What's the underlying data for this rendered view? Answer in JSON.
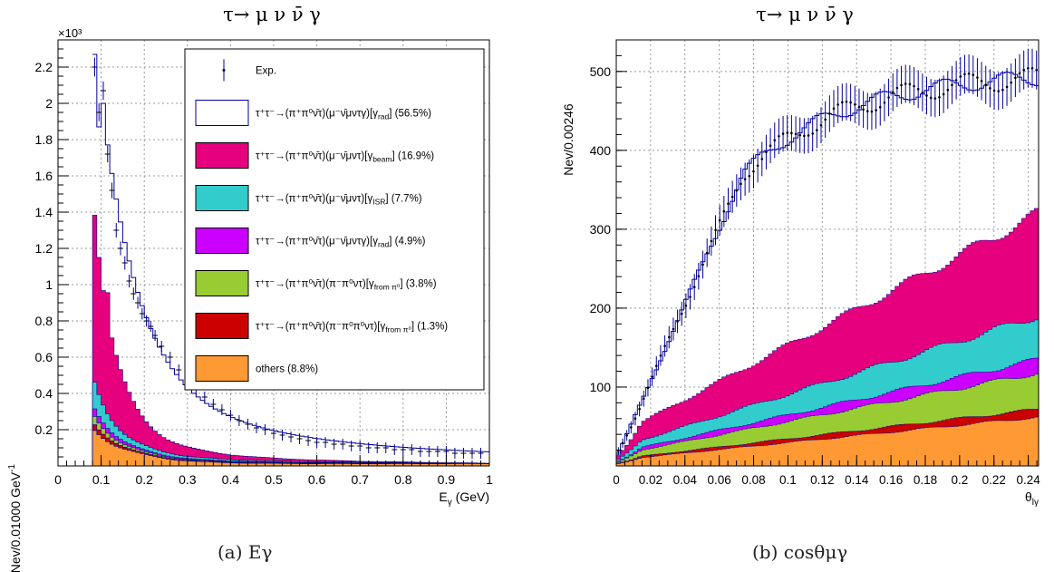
{
  "chart_data": [
    {
      "type": "histogram-stacked",
      "title": "τ→ μ ν ν̄ γ",
      "xlabel": "E",
      "xlabel_sub": "γ",
      "xlabel_unit": " (GeV)",
      "ylabel": "Nev/0.01000 GeV",
      "ylabel_sup": "-1",
      "y_exponent": "×10³",
      "xlim": [
        0,
        1
      ],
      "ylim": [
        0,
        2.35
      ],
      "x_ticks": [
        0,
        0.1,
        0.2,
        0.3,
        0.4,
        0.5,
        0.6,
        0.7,
        0.8,
        0.9,
        1
      ],
      "x_tick_labels": [
        "0",
        "0.1",
        "0.2",
        "0.3",
        "0.4",
        "0.5",
        "0.6",
        "0.7",
        "0.8",
        "0.9",
        "1"
      ],
      "y_ticks": [
        0.2,
        0.4,
        0.6,
        0.8,
        1,
        1.2,
        1.4,
        1.6,
        1.8,
        2,
        2.2
      ],
      "y_tick_labels": [
        "0.2",
        "0.4",
        "0.6",
        "0.8",
        "1",
        "1.2",
        "1.4",
        "1.6",
        "1.8",
        "2",
        "2.2"
      ],
      "grid": true,
      "legend_position": "top-right",
      "caption": "(a) Eγ",
      "data_points_x": [
        0.085,
        0.095,
        0.105,
        0.115,
        0.125,
        0.135,
        0.145,
        0.155,
        0.165,
        0.175,
        0.185,
        0.195,
        0.205,
        0.215,
        0.225,
        0.24,
        0.26,
        0.28,
        0.3,
        0.32,
        0.34,
        0.36,
        0.38,
        0.4,
        0.42,
        0.44,
        0.46,
        0.48,
        0.5,
        0.52,
        0.54,
        0.56,
        0.58,
        0.6,
        0.62,
        0.64,
        0.66,
        0.68,
        0.7,
        0.72,
        0.74,
        0.76,
        0.78,
        0.8,
        0.82,
        0.84,
        0.86,
        0.88,
        0.9,
        0.92,
        0.94,
        0.96,
        0.98
      ],
      "data_points_y": [
        2.2,
        1.95,
        2.07,
        1.72,
        1.52,
        1.3,
        1.2,
        1.12,
        1.02,
        0.95,
        0.9,
        0.84,
        0.8,
        0.77,
        0.72,
        0.66,
        0.6,
        0.53,
        0.47,
        0.42,
        0.38,
        0.34,
        0.31,
        0.28,
        0.25,
        0.23,
        0.21,
        0.2,
        0.18,
        0.17,
        0.16,
        0.15,
        0.14,
        0.13,
        0.13,
        0.12,
        0.12,
        0.11,
        0.11,
        0.1,
        0.1,
        0.1,
        0.09,
        0.09,
        0.09,
        0.08,
        0.08,
        0.08,
        0.08,
        0.07,
        0.07,
        0.07,
        0.07
      ],
      "components": [
        {
          "name": "others (8.8%)",
          "color": "#ff9933",
          "peak": 0.18,
          "tail": 0.01
        },
        {
          "name": "τ⁺τ⁻→(π⁺π⁰ν̄τ)(π⁻π⁰π⁰ντ)[γ from π⁰] (1.3%)",
          "color": "#cc0000",
          "peak": 0.03,
          "tail": 0.003
        },
        {
          "name": "τ⁺τ⁻→(π⁺π⁰ν̄τ)(π⁻π⁰ντ)[γ from π⁰] (3.8%)",
          "color": "#99cc33",
          "peak": 0.04,
          "tail": 0.004
        },
        {
          "name": "τ⁺τ⁻→(π⁺π⁰ν̄τ)(μ⁻ν̄μντγ)[γ rad] (4.9%)",
          "color": "#cc00ff",
          "peak": 0.04,
          "tail": 0.004
        },
        {
          "name": "τ⁺τ⁻→(π⁺π⁰ν̄τ)(μ⁻ν̄μντ)[γ ISR] (7.7%)",
          "color": "#33cccc",
          "peak": 0.13,
          "tail": 0.008
        },
        {
          "name": "τ⁺τ⁻→(π⁺π⁰ν̄τ)(μ⁻ν̄μντ)[γ beam] (16.9%)",
          "color": "#e6007e",
          "peak": 0.97,
          "tail": 0.008
        }
      ],
      "legend_entries": [
        {
          "type": "exp",
          "label": "Exp."
        },
        {
          "type": "box",
          "fill": "#ffffff",
          "stroke": "#000099",
          "lead": "τ⁺τ⁻→(π⁺π⁰ν̄τ)(μ⁻ν̄μντγ)[γ",
          "sub": "rad",
          "tail": "] (56.5%)"
        },
        {
          "type": "box",
          "fill": "#e6007e",
          "stroke": "#000000",
          "lead": "τ⁺τ⁻→(π⁺π⁰ν̄τ)(μ⁻ν̄μντ)[γ",
          "sub": "beam",
          "tail": "] (16.9%)"
        },
        {
          "type": "box",
          "fill": "#33cccc",
          "stroke": "#000000",
          "lead": "τ⁺τ⁻→(π⁺π⁰ν̄τ)(μ⁻ν̄μντ)[γ",
          "sub": "ISR",
          "tail": "] (7.7%)"
        },
        {
          "type": "box",
          "fill": "#cc00ff",
          "stroke": "#000000",
          "lead": "τ⁺τ⁻→(π⁺π⁰ν̄τ)(μ⁻ν̄μντγ)[γ",
          "sub": "rad",
          "tail": "] (4.9%)"
        },
        {
          "type": "box",
          "fill": "#99cc33",
          "stroke": "#000000",
          "lead": "τ⁺τ⁻→(π⁺π⁰ν̄τ)(π⁻π⁰ντ)[γ",
          "sub": "from π⁰",
          "tail": "] (3.8%)"
        },
        {
          "type": "box",
          "fill": "#cc0000",
          "stroke": "#000000",
          "lead": "τ⁺τ⁻→(π⁺π⁰ν̄τ)(π⁻π⁰π⁰ντ)[γ",
          "sub": "from π⁰",
          "tail": "] (1.3%)"
        },
        {
          "type": "box",
          "fill": "#ff9933",
          "stroke": "#000000",
          "lead": "others (8.8%)",
          "sub": "",
          "tail": ""
        }
      ]
    },
    {
      "type": "histogram-stacked",
      "title": "τ→ μ ν ν̄ γ",
      "xlabel": "θ",
      "xlabel_sub": "lγ",
      "ylabel": "Nev/0.00246",
      "xlim": [
        0,
        0.246
      ],
      "ylim": [
        0,
        540
      ],
      "x_ticks": [
        0,
        0.02,
        0.04,
        0.06,
        0.08,
        0.1,
        0.12,
        0.14,
        0.16,
        0.18,
        0.2,
        0.22,
        0.24
      ],
      "x_tick_labels": [
        "0",
        "0.02",
        "0.04",
        "0.06",
        "0.08",
        "0.1",
        "0.12",
        "0.14",
        "0.16",
        "0.18",
        "0.2",
        "0.22",
        "0.24"
      ],
      "y_ticks": [
        100,
        200,
        300,
        400,
        500
      ],
      "y_tick_labels": [
        "100",
        "200",
        "300",
        "400",
        "500"
      ],
      "grid": true,
      "caption": "(b) cosθμγ",
      "layer_tops_at_end": {
        "orange": 62,
        "red": 72,
        "green": 118,
        "purple": 135,
        "cyan": 190,
        "magenta": 320
      },
      "total_plateau": 500,
      "colors": {
        "orange": "#ff9933",
        "red": "#cc0000",
        "green": "#99cc33",
        "purple": "#cc00ff",
        "cyan": "#33cccc",
        "magenta": "#e6007e",
        "line": "#000099"
      }
    }
  ]
}
